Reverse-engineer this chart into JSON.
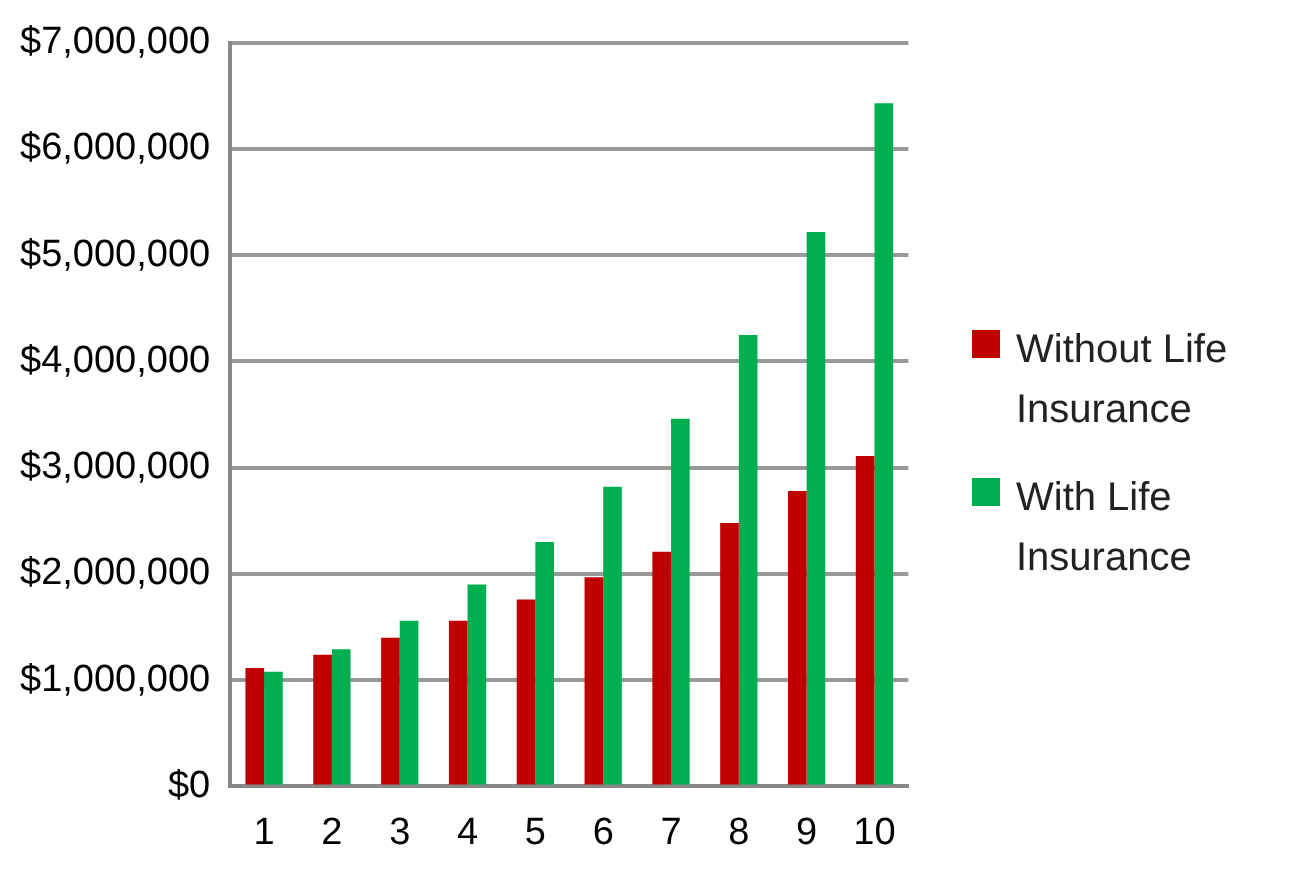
{
  "chart_data": {
    "type": "bar",
    "categories": [
      "1",
      "2",
      "3",
      "4",
      "5",
      "6",
      "7",
      "8",
      "9",
      "10"
    ],
    "series": [
      {
        "name": "Without Life Insurance",
        "color": "#c00000",
        "values": [
          1115000,
          1240000,
          1400000,
          1560000,
          1760000,
          1970000,
          2210000,
          2480000,
          2780000,
          3110000
        ]
      },
      {
        "name": "With Life Insurance",
        "color": "#00b050",
        "values": [
          1080000,
          1290000,
          1560000,
          1900000,
          2300000,
          2820000,
          3460000,
          4250000,
          5220000,
          6430000
        ]
      }
    ],
    "ylim": [
      0,
      7000000
    ],
    "yticks": [
      {
        "value": 0,
        "label": "$0"
      },
      {
        "value": 1000000,
        "label": "$1,000,000"
      },
      {
        "value": 2000000,
        "label": "$2,000,000"
      },
      {
        "value": 3000000,
        "label": "$3,000,000"
      },
      {
        "value": 4000000,
        "label": "$4,000,000"
      },
      {
        "value": 5000000,
        "label": "$5,000,000"
      },
      {
        "value": 6000000,
        "label": "$6,000,000"
      },
      {
        "value": 7000000,
        "label": "$7,000,000"
      }
    ],
    "grid": "y",
    "legend": "right"
  }
}
